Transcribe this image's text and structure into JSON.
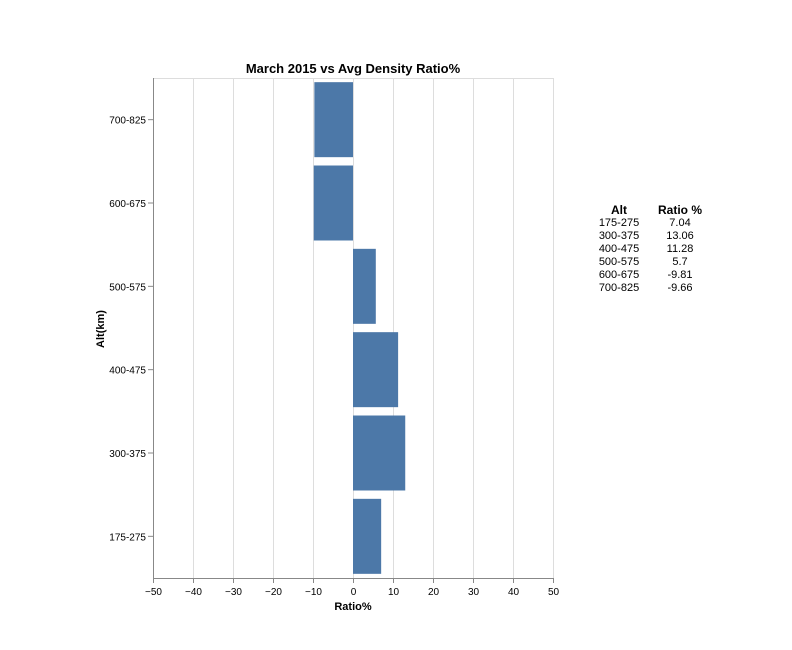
{
  "chart_data": {
    "type": "bar",
    "orientation": "horizontal",
    "title": "March 2015 vs Avg Density Ratio%",
    "xlabel": "Ratio%",
    "ylabel": "Alt(km)",
    "categories": [
      "700-825",
      "600-675",
      "500-575",
      "400-475",
      "300-375",
      "175-275"
    ],
    "values": [
      -9.66,
      -9.81,
      5.7,
      11.28,
      13.06,
      7.04
    ],
    "xlim": [
      -50,
      50
    ],
    "xticks": [
      -50,
      -40,
      -30,
      -20,
      -10,
      0,
      10,
      20,
      30,
      40,
      50
    ],
    "xtick_labels": [
      "−50",
      "−40",
      "−30",
      "−20",
      "−10",
      "0",
      "10",
      "20",
      "30",
      "40",
      "50"
    ],
    "grid": true,
    "bar_color": "#4c78a8"
  },
  "table": {
    "headers": [
      "Alt",
      "Ratio %"
    ],
    "rows": [
      [
        "175-275",
        "7.04"
      ],
      [
        "300-375",
        "13.06"
      ],
      [
        "400-475",
        "11.28"
      ],
      [
        "500-575",
        "5.7"
      ],
      [
        "600-675",
        "-9.81"
      ],
      [
        "700-825",
        "-9.66"
      ]
    ]
  }
}
